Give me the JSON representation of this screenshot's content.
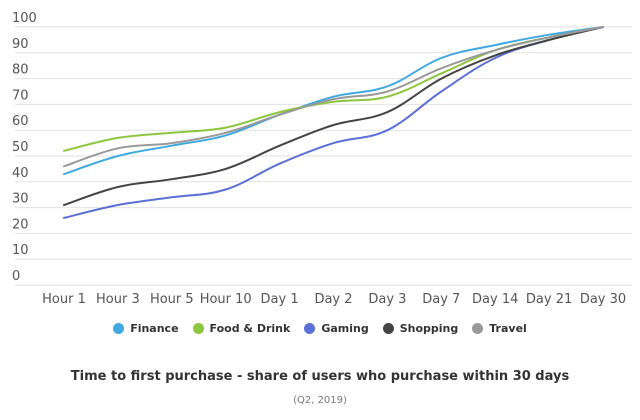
{
  "chart_data": {
    "type": "line",
    "title": "Time to first purchase - share of users who purchase within 30 days",
    "subtitle": "(Q2, 2019)",
    "xlabel": "",
    "ylabel": "",
    "ylim": [
      0,
      100
    ],
    "yticks": [
      0,
      10,
      20,
      30,
      40,
      50,
      60,
      70,
      80,
      90,
      100
    ],
    "grid": true,
    "legend_position": "bottom",
    "categories": [
      "Hour 1",
      "Hour 3",
      "Hour 5",
      "Hour 10",
      "Day 1",
      "Day 2",
      "Day 3",
      "Day 7",
      "Day 14",
      "Day 21",
      "Day 30"
    ],
    "series": [
      {
        "name": "Finance",
        "color": "#3fa9e0",
        "values": [
          43,
          50,
          54,
          58,
          66,
          73,
          77,
          88,
          93,
          97,
          100
        ]
      },
      {
        "name": "Food & Drink",
        "color": "#8dc63f",
        "values": [
          52,
          57,
          59,
          61,
          67,
          71,
          73,
          82,
          91,
          96,
          100
        ]
      },
      {
        "name": "Gaming",
        "color": "#5b6fd6",
        "values": [
          26,
          31,
          34,
          37,
          47,
          55,
          60,
          75,
          88,
          95,
          100
        ]
      },
      {
        "name": "Shopping",
        "color": "#444444",
        "values": [
          31,
          38,
          41,
          45,
          54,
          62,
          67,
          80,
          89,
          95,
          100
        ]
      },
      {
        "name": "Travel",
        "color": "#999999",
        "values": [
          46,
          53,
          55,
          59,
          66,
          72,
          75,
          84,
          91,
          96,
          100
        ]
      }
    ]
  }
}
